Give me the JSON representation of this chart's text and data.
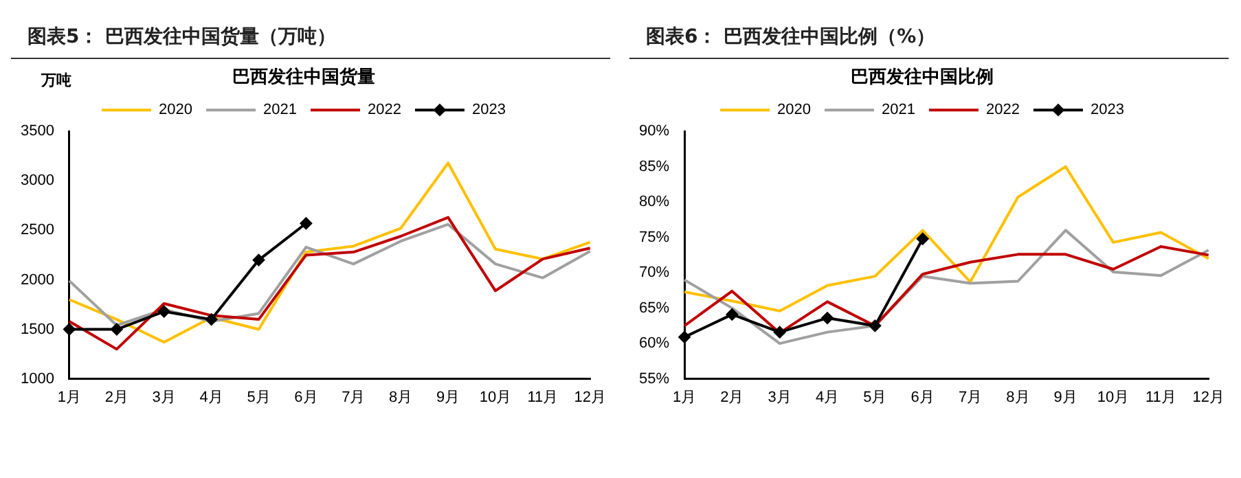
{
  "chart_data": [
    {
      "type": "line",
      "title": "图表5：  巴西发往中国货量（万吨）",
      "subtitle": "巴西发往中国货量",
      "ylabel": "万吨",
      "categories": [
        "1月",
        "2月",
        "3月",
        "4月",
        "5月",
        "6月",
        "7月",
        "8月",
        "9月",
        "10月",
        "11月",
        "12月"
      ],
      "series": [
        {
          "name": "2020",
          "color": "#ffc000",
          "values": [
            1800,
            1600,
            1370,
            1620,
            1500,
            2280,
            2340,
            2520,
            3180,
            2310,
            2210,
            2380
          ]
        },
        {
          "name": "2021",
          "color": "#a0a0a0",
          "values": [
            1990,
            1540,
            1700,
            1580,
            1660,
            2330,
            2160,
            2390,
            2560,
            2160,
            2020,
            2290
          ]
        },
        {
          "name": "2022",
          "color": "#c00000",
          "values": [
            1580,
            1300,
            1760,
            1640,
            1600,
            2250,
            2280,
            2440,
            2630,
            1890,
            2210,
            2320
          ]
        },
        {
          "name": "2023",
          "color": "#000000",
          "marker": "diamond",
          "values": [
            1500,
            1500,
            1680,
            1600,
            2200,
            2570,
            null,
            null,
            null,
            null,
            null,
            null
          ]
        }
      ],
      "ylim": [
        1000,
        3500
      ],
      "yticks": [
        1000,
        1500,
        2000,
        2500,
        3000,
        3500
      ],
      "grid": false,
      "legend": "top",
      "line_style": "solid"
    },
    {
      "type": "line",
      "title": "图表6：  巴西发往中国比例（%）",
      "subtitle": "巴西发往中国比例",
      "categories": [
        "1月",
        "2月",
        "3月",
        "4月",
        "5月",
        "6月",
        "7月",
        "8月",
        "9月",
        "10月",
        "11月",
        "12月"
      ],
      "series": [
        {
          "name": "2020",
          "color": "#ffc000",
          "values": [
            67.3,
            66.0,
            64.6,
            68.2,
            69.5,
            76.0,
            68.7,
            80.7,
            85.0,
            74.3,
            75.7,
            72.0
          ]
        },
        {
          "name": "2021",
          "color": "#a0a0a0",
          "values": [
            69.0,
            65.0,
            60.0,
            61.6,
            62.5,
            69.5,
            68.5,
            68.8,
            76.0,
            70.1,
            69.6,
            73.2
          ]
        },
        {
          "name": "2022",
          "color": "#c00000",
          "values": [
            62.5,
            67.4,
            61.5,
            65.9,
            62.5,
            69.8,
            71.5,
            72.6,
            72.6,
            70.5,
            73.7,
            72.5
          ]
        },
        {
          "name": "2023",
          "color": "#000000",
          "marker": "diamond",
          "values": [
            60.9,
            64.1,
            61.6,
            63.6,
            62.5,
            74.8,
            null,
            null,
            null,
            null,
            null,
            null
          ]
        }
      ],
      "ylim": [
        55,
        90
      ],
      "yticks": [
        {
          "value": 55,
          "label": "55%"
        },
        {
          "value": 60,
          "label": "60%"
        },
        {
          "value": 65,
          "label": "65%"
        },
        {
          "value": 70,
          "label": "70%"
        },
        {
          "value": 75,
          "label": "75%"
        },
        {
          "value": 80,
          "label": "80%"
        },
        {
          "value": 85,
          "label": "85%"
        },
        {
          "value": 90,
          "label": "90%"
        }
      ],
      "grid": false,
      "legend": "top",
      "line_style": "solid"
    }
  ]
}
